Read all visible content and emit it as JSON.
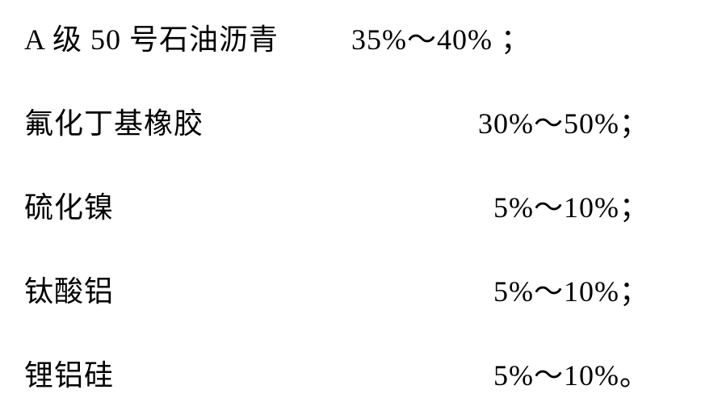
{
  "composition_table": {
    "rows": [
      {
        "label": "A 级 50 号石油沥青",
        "value": "35%～40%  ；"
      },
      {
        "label": "氟化丁基橡胶",
        "value": "30%～50%；"
      },
      {
        "label": "硫化镍",
        "value": "5%～10%；"
      },
      {
        "label": "钛酸铝",
        "value": "5%～10%；"
      },
      {
        "label": "锂铝硅",
        "value": "5%～10%。"
      }
    ],
    "font_size": 36,
    "text_color": "#000000",
    "background_color": "#ffffff",
    "row_spacing": 52
  }
}
